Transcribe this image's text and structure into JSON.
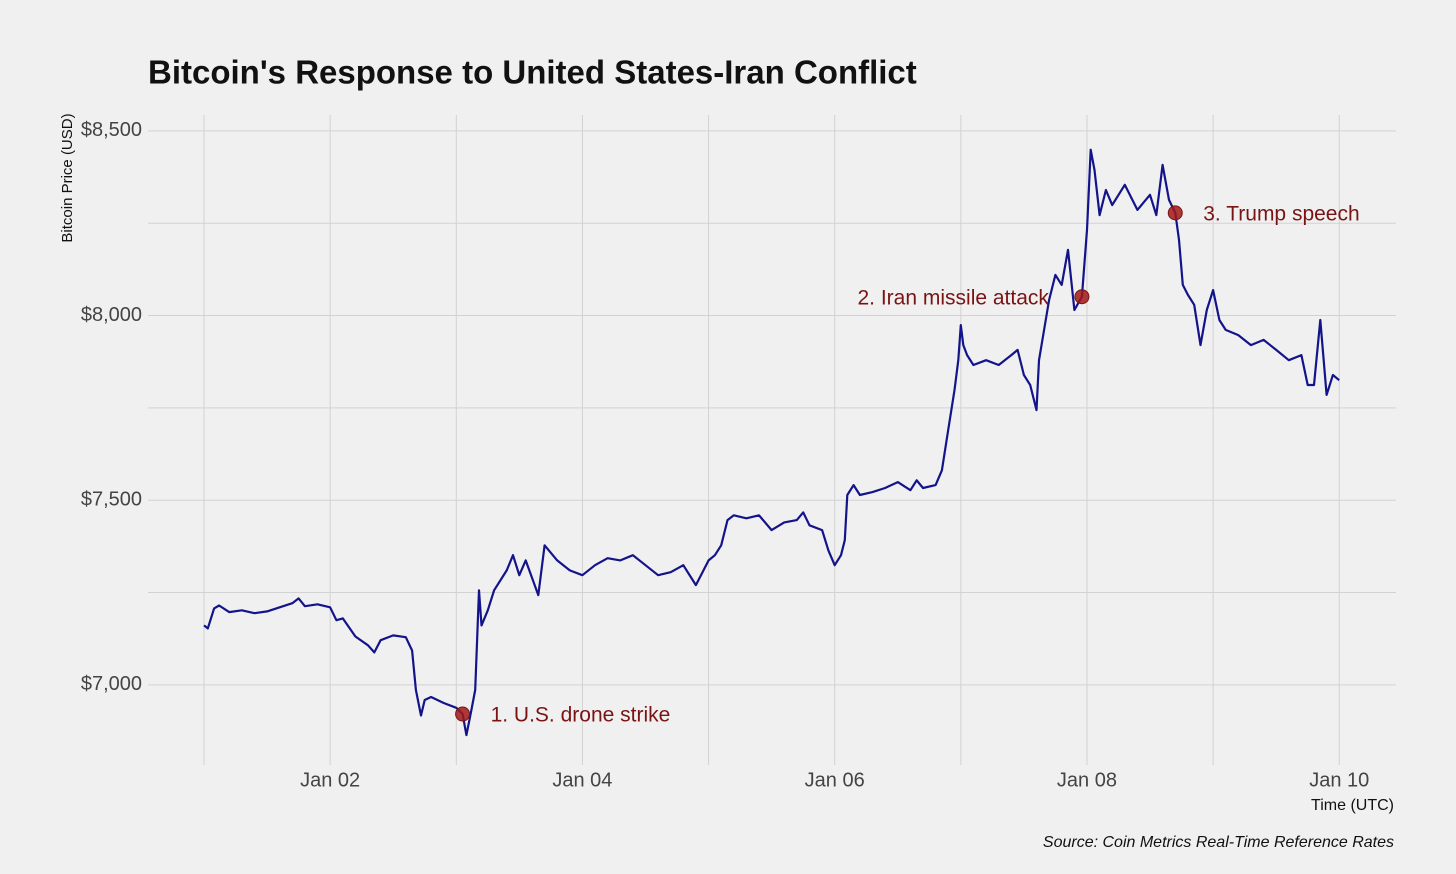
{
  "chart_data": {
    "type": "line",
    "title": "Bitcoin's Response to United States-Iran Conflict",
    "y_label": "Bitcoin Price (USD)",
    "x_label": "Time (UTC)",
    "caption": "Source: Coin Metrics Real-Time Reference Rates",
    "color": "#14148a",
    "grid": true,
    "xlim": [
      0.556,
      10.45
    ],
    "ylim": [
      6783,
      8543
    ],
    "xticks": [
      {
        "value": 2,
        "label": "Jan 02"
      },
      {
        "value": 4,
        "label": "Jan 04"
      },
      {
        "value": 6,
        "label": "Jan 06"
      },
      {
        "value": 8,
        "label": "Jan 08"
      },
      {
        "value": 10,
        "label": "Jan 10"
      }
    ],
    "minor_xticks": [
      1,
      3,
      5,
      7,
      9
    ],
    "yticks": [
      {
        "value": 7000,
        "label": "$7,000"
      },
      {
        "value": 7500,
        "label": "$7,500"
      },
      {
        "value": 8000,
        "label": "$8,000"
      },
      {
        "value": 8500,
        "label": "$8,500"
      }
    ],
    "minor_yticks": [
      7250,
      7750,
      8250
    ],
    "x": [
      1.0,
      1.03,
      1.08,
      1.12,
      1.2,
      1.3,
      1.4,
      1.5,
      1.6,
      1.7,
      1.75,
      1.8,
      1.9,
      2.0,
      2.05,
      2.1,
      2.2,
      2.3,
      2.35,
      2.4,
      2.5,
      2.6,
      2.65,
      2.68,
      2.72,
      2.75,
      2.8,
      2.9,
      3.0,
      3.05,
      3.08,
      3.12,
      3.15,
      3.18,
      3.2,
      3.25,
      3.3,
      3.4,
      3.45,
      3.5,
      3.55,
      3.65,
      3.7,
      3.8,
      3.9,
      4.0,
      4.1,
      4.2,
      4.3,
      4.4,
      4.5,
      4.6,
      4.7,
      4.8,
      4.9,
      5.0,
      5.05,
      5.1,
      5.15,
      5.2,
      5.3,
      5.4,
      5.5,
      5.6,
      5.7,
      5.75,
      5.8,
      5.9,
      5.95,
      6.0,
      6.05,
      6.08,
      6.1,
      6.15,
      6.2,
      6.3,
      6.4,
      6.5,
      6.6,
      6.65,
      6.7,
      6.8,
      6.85,
      6.9,
      6.95,
      6.98,
      7.0,
      7.02,
      7.05,
      7.1,
      7.2,
      7.3,
      7.4,
      7.45,
      7.5,
      7.55,
      7.6,
      7.62,
      7.7,
      7.75,
      7.8,
      7.85,
      7.9,
      7.96,
      8.0,
      8.03,
      8.06,
      8.1,
      8.15,
      8.2,
      8.3,
      8.4,
      8.5,
      8.55,
      8.6,
      8.65,
      8.7,
      8.73,
      8.76,
      8.8,
      8.85,
      8.9,
      8.95,
      9.0,
      9.05,
      9.1,
      9.2,
      9.3,
      9.4,
      9.5,
      9.6,
      9.7,
      9.75,
      9.8,
      9.85,
      9.9,
      9.95,
      10.0
    ],
    "values": [
      7161,
      7153,
      7207,
      7215,
      7197,
      7202,
      7194,
      7199,
      7210,
      7221,
      7234,
      7213,
      7218,
      7210,
      7175,
      7180,
      7131,
      7107,
      7088,
      7121,
      7134,
      7129,
      7093,
      6986,
      6917,
      6959,
      6967,
      6951,
      6938,
      6921,
      6864,
      6932,
      6986,
      7256,
      7161,
      7202,
      7256,
      7310,
      7351,
      7297,
      7337,
      7243,
      7378,
      7337,
      7310,
      7297,
      7324,
      7343,
      7337,
      7351,
      7324,
      7297,
      7305,
      7324,
      7270,
      7337,
      7351,
      7378,
      7446,
      7459,
      7451,
      7459,
      7419,
      7440,
      7446,
      7467,
      7432,
      7419,
      7364,
      7324,
      7351,
      7392,
      7514,
      7541,
      7514,
      7522,
      7533,
      7549,
      7527,
      7554,
      7533,
      7541,
      7581,
      7690,
      7798,
      7879,
      7974,
      7920,
      7893,
      7866,
      7879,
      7866,
      7893,
      7907,
      7839,
      7812,
      7744,
      7879,
      8042,
      8110,
      8083,
      8178,
      8015,
      8051,
      8232,
      8449,
      8394,
      8272,
      8340,
      8299,
      8354,
      8286,
      8327,
      8272,
      8408,
      8313,
      8278,
      8205,
      8083,
      8056,
      8029,
      7920,
      8015,
      8069,
      7988,
      7961,
      7947,
      7920,
      7934,
      7907,
      7879,
      7893,
      7812,
      7812,
      7988,
      7785,
      7839,
      7825
    ],
    "annotations": [
      {
        "text": "1. U.S. drone strike",
        "x": 3.05,
        "y": 6921,
        "side": "right"
      },
      {
        "text": "2. Iran missile attack",
        "x": 7.96,
        "y": 8051,
        "side": "left"
      },
      {
        "text": "3. Trump speech",
        "x": 8.7,
        "y": 8278,
        "side": "right"
      }
    ],
    "annotation_color": "#7a1414"
  }
}
